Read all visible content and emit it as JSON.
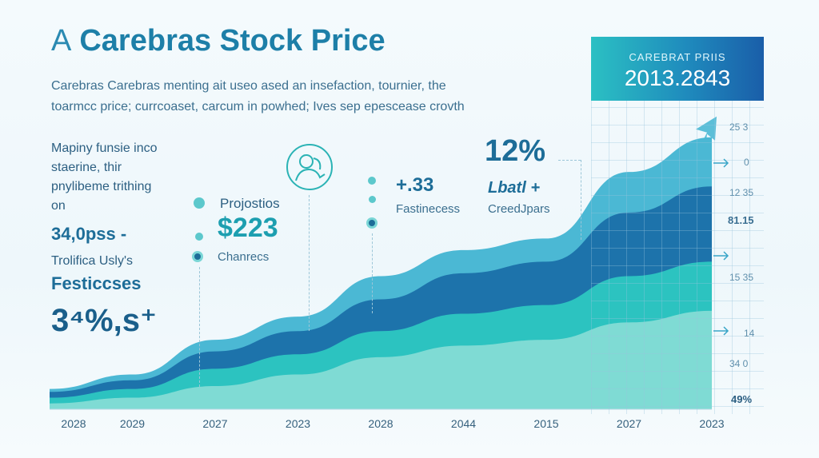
{
  "header": {
    "title_prefix": "A",
    "title": "Carebras Stock Price",
    "subtitle_line1": "Carebras Carebras menting ait useo ased an insefaction, tournier, the",
    "subtitle_line2": "toarmcc price; currcoaset, carcum in powhed; Ives sep epescease crovth"
  },
  "left_panel": {
    "desc_line1": "Mapiny funsie inco",
    "desc_line2": "staerine, thir",
    "desc_line3": "pnylibeme trithing",
    "desc_line4": "on",
    "big_value": "34,0pss -",
    "small_label": "Trolifica Usly's",
    "bold_label": "Festiccses",
    "big_value2": "3⁴%,s⁺"
  },
  "callouts": {
    "proj_label": "Projostios",
    "proj_value": "$223",
    "proj_sub": "Chanrecs",
    "mid_value": "+.33",
    "mid_label": "Fastinecess",
    "pct_value": "12%",
    "pct_label": "Lbatl +",
    "pct_sub": "CreedJpars"
  },
  "price_panel": {
    "label": "CAREBRAT PRIIS",
    "value": "2013.2843",
    "side_labels": [
      "25 3",
      "0",
      "12 35",
      "81.15",
      "15 35",
      "14",
      "34 0"
    ],
    "footer_pct": "49%"
  },
  "colors": {
    "deep": "#1d73ab",
    "mid": "#2a9fbe",
    "teal": "#2cc3c0",
    "light": "#7fdbd4",
    "arrow": "#4bb8d4"
  },
  "chart_data": {
    "type": "area",
    "title": "Carebras Stock Price",
    "categories": [
      "2028",
      "2029",
      "2027",
      "2023",
      "2028",
      "2044",
      "2015",
      "2027",
      "2023"
    ],
    "series": [
      {
        "values": [
          2,
          4,
          8,
          12,
          18,
          22,
          24,
          30,
          34
        ]
      },
      {
        "values": [
          4,
          7,
          14,
          19,
          27,
          33,
          36,
          46,
          51
        ]
      },
      {
        "values": [
          6,
          10,
          20,
          27,
          38,
          47,
          51,
          68,
          77
        ]
      },
      {
        "values": [
          7,
          12,
          24,
          32,
          46,
          55,
          59,
          82,
          94
        ]
      }
    ],
    "ylim": [
      0,
      100
    ],
    "grid": false,
    "legend": "none"
  }
}
